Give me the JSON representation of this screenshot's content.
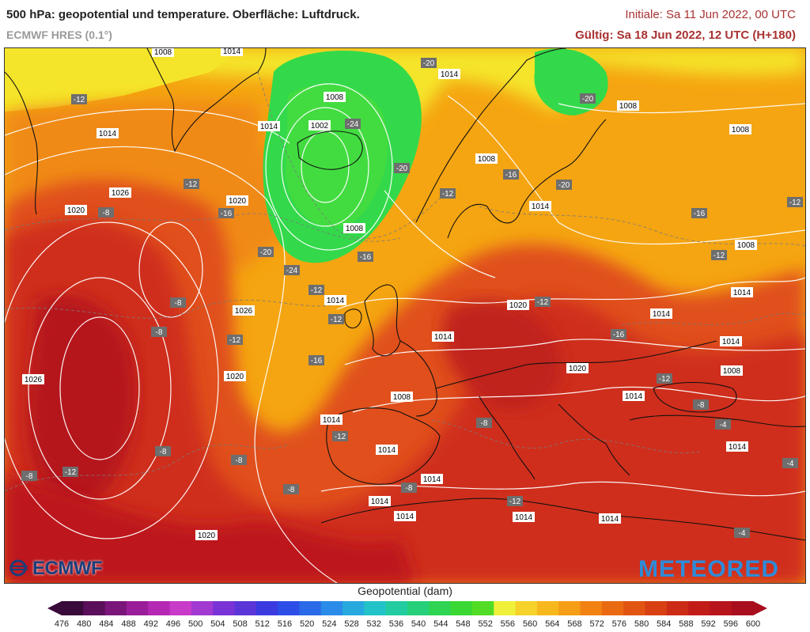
{
  "header": {
    "title": "500 hPa: geopotential und temperature. Oberfläche: Luftdruck.",
    "model": "ECMWF HRES (0.1°)",
    "initial": "Initiale: Sa 11 Jun 2022, 00 UTC",
    "valid": "Gültig: Sa 18 Jun 2022, 12 UTC (H+180)"
  },
  "logos": {
    "left": "ECMWF",
    "right": "METEORED"
  },
  "colorbar": {
    "title": "Geopotential (dam)",
    "ticks": [
      "476",
      "480",
      "484",
      "488",
      "492",
      "496",
      "500",
      "504",
      "508",
      "512",
      "516",
      "520",
      "524",
      "528",
      "532",
      "536",
      "540",
      "544",
      "548",
      "552",
      "556",
      "560",
      "564",
      "568",
      "572",
      "576",
      "580",
      "584",
      "588",
      "592",
      "596",
      "600"
    ],
    "colors": [
      "#3a0a3a",
      "#5a0f5a",
      "#7a157a",
      "#9a1e9a",
      "#b428b4",
      "#c83ac8",
      "#a23ad2",
      "#7a33d6",
      "#5a36d8",
      "#3a3ae0",
      "#2c4ee6",
      "#2a6ae8",
      "#2a8ce8",
      "#27a9e0",
      "#22c3c8",
      "#22cca0",
      "#26d07a",
      "#2ed452",
      "#3ad834",
      "#52dc26",
      "#f0f03a",
      "#f6d22a",
      "#f7b81e",
      "#f59e16",
      "#f18212",
      "#ea6a12",
      "#e25412",
      "#d84014",
      "#cc2c16",
      "#c21c18",
      "#b8141c",
      "#a80e1e"
    ]
  },
  "map_labels": {
    "pressure": [
      "1008",
      "1014",
      "1008",
      "1014",
      "1002",
      "1008",
      "1014",
      "1026",
      "1020",
      "1020",
      "1014",
      "1008",
      "1014",
      "1020",
      "1014",
      "1008",
      "1014",
      "1026",
      "1020",
      "1014",
      "1014",
      "1008",
      "1014",
      "1014",
      "1014",
      "1014",
      "1014",
      "1014",
      "1020",
      "1014",
      "1008",
      "1008",
      "1014",
      "1014",
      "1008",
      "1014",
      "1020",
      "1026",
      "1014",
      "1014",
      "1014",
      "1014",
      "1008",
      "1014",
      "1008",
      "1020"
    ],
    "temperature": [
      "-12",
      "-20",
      "-20",
      "-24",
      "-20",
      "-16",
      "-12",
      "-16",
      "-20",
      "-16",
      "-12",
      "-8",
      "-12",
      "-20",
      "-24",
      "-16",
      "-12",
      "-12",
      "-8",
      "-8",
      "-12",
      "-16",
      "-12",
      "-12",
      "-16",
      "-16",
      "-12",
      "-12",
      "-8",
      "-8",
      "-8",
      "-12",
      "-8",
      "-8",
      "-8",
      "-12",
      "-8",
      "-4",
      "-4",
      "-4"
    ]
  },
  "map_colors": {
    "low_green": "#33d94a",
    "yellow": "#f5f02e",
    "orange": "#f5a511",
    "red": "#d9391f",
    "darkred": "#b5151c"
  }
}
